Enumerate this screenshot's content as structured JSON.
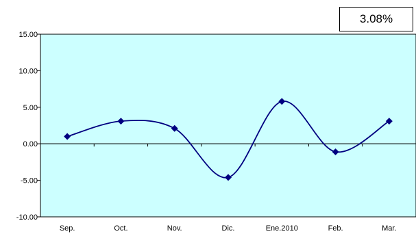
{
  "callout": {
    "text": "3.08%"
  },
  "colors": {
    "plot_bg": "#CCFFFF",
    "series": "#000080",
    "axis": "#000000"
  },
  "chart_data": {
    "type": "line",
    "title": "",
    "xlabel": "",
    "ylabel": "",
    "categories": [
      "Sep.",
      "Oct.",
      "Nov.",
      "Dic.",
      "Ene.2010",
      "Feb.",
      "Mar."
    ],
    "series": [
      {
        "values": [
          1.0,
          3.1,
          2.1,
          -4.6,
          5.8,
          -1.1,
          3.1
        ]
      }
    ],
    "ylim": [
      -10,
      15
    ],
    "yticks": [
      -10,
      -5,
      0,
      5,
      10,
      15
    ],
    "ytick_labels": [
      "-10.00",
      "-5.00",
      "0.00",
      "5.00",
      "10.00",
      "15.00"
    ],
    "grid": false,
    "legend": "none",
    "smooth": true,
    "marker": "diamond"
  }
}
